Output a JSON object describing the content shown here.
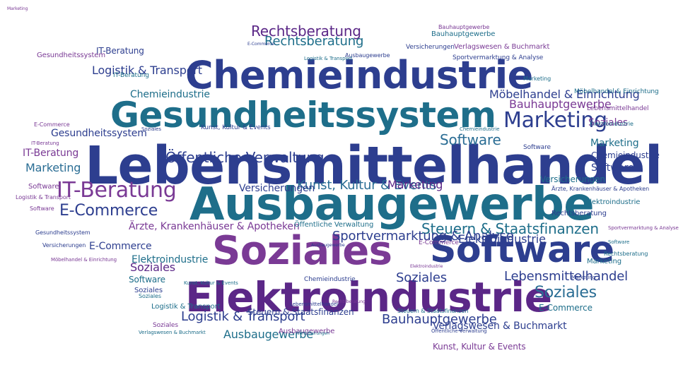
{
  "colors": {
    "blue": "#2d3e8f",
    "teal": "#1e6e8a",
    "purple": "#5b2787",
    "violet": "#7a3a95",
    "ocean": "#2a6d94"
  },
  "words": [
    {
      "text": "Lebensmittelhandel",
      "size": 74,
      "color": "blue"
    },
    {
      "text": "Ausbaugewerbe",
      "size": 64,
      "color": "teal"
    },
    {
      "text": "Chemieindustrie",
      "size": 54,
      "color": "blue"
    },
    {
      "text": "Gesundheitssystem",
      "size": 50,
      "color": "teal"
    },
    {
      "text": "Soziales",
      "size": 56,
      "color": "violet"
    },
    {
      "text": "Software",
      "size": 52,
      "color": "blue"
    },
    {
      "text": "Elektroindustrie",
      "size": 58,
      "color": "purple"
    },
    {
      "text": "Marketing",
      "size": 30,
      "color": "blue"
    },
    {
      "text": "Software",
      "size": 20,
      "color": "ocean"
    },
    {
      "text": "IT-Beratung",
      "size": 30,
      "color": "violet"
    },
    {
      "text": "E-Commerce",
      "size": 22,
      "color": "blue"
    },
    {
      "text": "Öffentliche Verwaltung",
      "size": 20,
      "color": "blue"
    },
    {
      "text": "Kunst, Kultur & Events",
      "size": 18,
      "color": "ocean"
    },
    {
      "text": "Steuern & Staatsfinanzen",
      "size": 20,
      "color": "teal"
    },
    {
      "text": "Rechtsberatung",
      "size": 20,
      "color": "purple"
    },
    {
      "text": "Sportvermarktung & Analyse",
      "size": 18,
      "color": "blue"
    },
    {
      "text": "Rechtsberatung",
      "size": 18,
      "color": "teal"
    },
    {
      "text": "Logistik & Transport",
      "size": 18,
      "color": "blue"
    },
    {
      "text": "Bauhauptgewerbe",
      "size": 18,
      "color": "blue"
    },
    {
      "text": "Soziales",
      "size": 22,
      "color": "ocean"
    },
    {
      "text": "Marketing",
      "size": 16,
      "color": "purple"
    },
    {
      "text": "Lebensmittelhandel",
      "size": 18,
      "color": "blue"
    },
    {
      "text": "Soziales",
      "size": 18,
      "color": "blue"
    },
    {
      "text": "Soziales",
      "size": 14,
      "color": "violet"
    },
    {
      "text": "Ausbaugewerbe",
      "size": 16,
      "color": "teal"
    },
    {
      "text": "Logistik & Transport",
      "size": 16,
      "color": "blue"
    },
    {
      "text": "Bauhauptgewerbe",
      "size": 16,
      "color": "violet"
    },
    {
      "text": "Chemieindustrie",
      "size": 14,
      "color": "teal"
    },
    {
      "text": "Gesundheitssystem",
      "size": 14,
      "color": "blue"
    },
    {
      "text": "Marketing",
      "size": 16,
      "color": "ocean"
    },
    {
      "text": "IT-Beratung",
      "size": 14,
      "color": "violet"
    },
    {
      "text": "Software",
      "size": 14,
      "color": "blue"
    },
    {
      "text": "Marketing",
      "size": 14,
      "color": "teal"
    },
    {
      "text": "E-Commerce",
      "size": 14,
      "color": "blue"
    },
    {
      "text": "Elektroindustrie",
      "size": 14,
      "color": "teal"
    },
    {
      "text": "Soziales",
      "size": 16,
      "color": "purple"
    },
    {
      "text": "Elektroindustrie",
      "size": 16,
      "color": "blue"
    },
    {
      "text": "Software",
      "size": 12,
      "color": "teal"
    },
    {
      "text": "Versicherungen",
      "size": 14,
      "color": "blue"
    },
    {
      "text": "Möbelhandel & Einrichtung",
      "size": 16,
      "color": "blue"
    },
    {
      "text": "Ärzte, Krankenhäuser & Apotheken",
      "size": 14,
      "color": "violet"
    },
    {
      "text": "Verlagswesen & Buchmarkt",
      "size": 14,
      "color": "blue"
    },
    {
      "text": "Versicherungen",
      "size": 12,
      "color": "teal"
    },
    {
      "text": "Kunst, Kultur & Events",
      "size": 12,
      "color": "violet"
    },
    {
      "text": "Chemieindustrie",
      "size": 12,
      "color": "blue"
    },
    {
      "text": "E-Commerce",
      "size": 12,
      "color": "teal"
    },
    {
      "text": "IT-Beratung",
      "size": 12,
      "color": "blue"
    },
    {
      "text": "Logistik & Transport",
      "size": 10,
      "color": "teal"
    },
    {
      "text": "Software",
      "size": 10,
      "color": "violet"
    },
    {
      "text": "Soziales",
      "size": 10,
      "color": "blue"
    },
    {
      "text": "Bauhauptgewerbe",
      "size": 10,
      "color": "teal"
    },
    {
      "text": "Rechtsberatung",
      "size": 10,
      "color": "blue"
    },
    {
      "text": "Marketing",
      "size": 10,
      "color": "teal"
    },
    {
      "text": "Ausbaugewerbe",
      "size": 10,
      "color": "violet"
    },
    {
      "text": "Steuern & Staatsfinanzen",
      "size": 12,
      "color": "blue"
    },
    {
      "text": "Gesundheitssystem",
      "size": 10,
      "color": "violet"
    },
    {
      "text": "Öffentliche Verwaltung",
      "size": 10,
      "color": "teal"
    },
    {
      "text": "Sportvermarktung & Analyse",
      "size": 9,
      "color": "blue"
    },
    {
      "text": "Verlagswesen & Buchmarkt",
      "size": 10,
      "color": "violet"
    },
    {
      "text": "Kunst, Kultur & Events",
      "size": 9,
      "color": "blue"
    },
    {
      "text": "Elektroindustrie",
      "size": 10,
      "color": "teal"
    },
    {
      "text": "E-Commerce",
      "size": 9,
      "color": "violet"
    },
    {
      "text": "Versicherungen",
      "size": 9,
      "color": "blue"
    },
    {
      "text": "Möbelhandel & Einrichtung",
      "size": 9,
      "color": "teal"
    },
    {
      "text": "Lebensmittelhandel",
      "size": 9,
      "color": "violet"
    },
    {
      "text": "Chemieindustrie",
      "size": 9,
      "color": "blue"
    },
    {
      "text": "IT-Beratung",
      "size": 9,
      "color": "teal"
    },
    {
      "text": "Soziales",
      "size": 9,
      "color": "violet"
    },
    {
      "text": "Software",
      "size": 9,
      "color": "blue"
    },
    {
      "text": "Marketing",
      "size": 8,
      "color": "teal"
    },
    {
      "text": "Ärzte, Krankenhäuser & Apotheken",
      "size": 8,
      "color": "blue"
    },
    {
      "text": "Logistik & Transport",
      "size": 8,
      "color": "violet"
    },
    {
      "text": "Rechtsberatung",
      "size": 8,
      "color": "teal"
    },
    {
      "text": "Ausbaugewerbe",
      "size": 8,
      "color": "blue"
    },
    {
      "text": "Bauhauptgewerbe",
      "size": 8,
      "color": "violet"
    },
    {
      "text": "Steuern & Staatsfinanzen",
      "size": 8,
      "color": "teal"
    },
    {
      "text": "Gesundheitssystem",
      "size": 8,
      "color": "blue"
    },
    {
      "text": "E-Commerce",
      "size": 8,
      "color": "violet"
    },
    {
      "text": "Elektroindustrie",
      "size": 8,
      "color": "teal"
    },
    {
      "text": "Versicherungen",
      "size": 8,
      "color": "blue"
    },
    {
      "text": "Soziales",
      "size": 8,
      "color": "teal"
    },
    {
      "text": "Software",
      "size": 8,
      "color": "violet"
    },
    {
      "text": "Marketing",
      "size": 7,
      "color": "blue"
    },
    {
      "text": "IT-Beratung",
      "size": 7,
      "color": "violet"
    },
    {
      "text": "Chemieindustrie",
      "size": 7,
      "color": "teal"
    },
    {
      "text": "Sportvermarktung & Analyse",
      "size": 7,
      "color": "violet"
    },
    {
      "text": "Kunst, Kultur & Events",
      "size": 7,
      "color": "teal"
    },
    {
      "text": "Öffentliche Verwaltung",
      "size": 7,
      "color": "blue"
    },
    {
      "text": "Verlagswesen & Buchmarkt",
      "size": 7,
      "color": "teal"
    },
    {
      "text": "Möbelhandel & Einrichtung",
      "size": 7,
      "color": "violet"
    },
    {
      "text": "Lebensmittelhandel",
      "size": 7,
      "color": "blue"
    },
    {
      "text": "Logistik & Transport",
      "size": 7,
      "color": "teal"
    },
    {
      "text": "Soziales",
      "size": 7,
      "color": "blue"
    },
    {
      "text": "Software",
      "size": 7,
      "color": "teal"
    },
    {
      "text": "Rechtsberatung",
      "size": 6,
      "color": "violet"
    },
    {
      "text": "Ausbaugewerbe",
      "size": 6,
      "color": "blue"
    },
    {
      "text": "Elektroindustrie",
      "size": 6,
      "color": "violet"
    },
    {
      "text": "E-Commerce",
      "size": 6,
      "color": "blue"
    },
    {
      "text": "Versicherungen",
      "size": 6,
      "color": "teal"
    },
    {
      "text": "Marketing",
      "size": 6,
      "color": "violet"
    }
  ]
}
